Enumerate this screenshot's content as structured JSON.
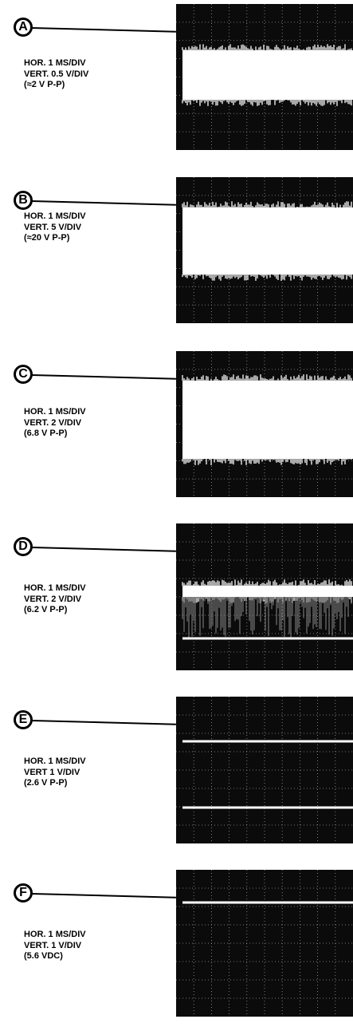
{
  "panels": [
    {
      "letter": "A",
      "lines": [
        "HOR. 1 MS/DIV",
        "VERT. 0.5 V/DIV",
        "(≈2 V P-P)"
      ]
    },
    {
      "letter": "B",
      "lines": [
        "HOR. 1 MS/DIV",
        "VERT. 5 V/DIV",
        "(≈20 V P-P)"
      ]
    },
    {
      "letter": "C",
      "lines": [
        "HOR. 1 MS/DIV",
        "VERT. 2 V/DIV",
        "(6.8 V P-P)"
      ]
    },
    {
      "letter": "D",
      "lines": [
        "HOR. 1 MS/DIV",
        "VERT. 2 V/DIV",
        "(6.2 V P-P)"
      ]
    },
    {
      "letter": "E",
      "lines": [
        "HOR. 1 MS/DIV",
        "VERT 1 V/DIV",
        "(2.6 V P-P)"
      ]
    },
    {
      "letter": "F",
      "lines": [
        "HOR. 1 MS/DIV",
        "VERT. 1 V/DIV",
        "(5.6 VDC)"
      ]
    }
  ]
}
